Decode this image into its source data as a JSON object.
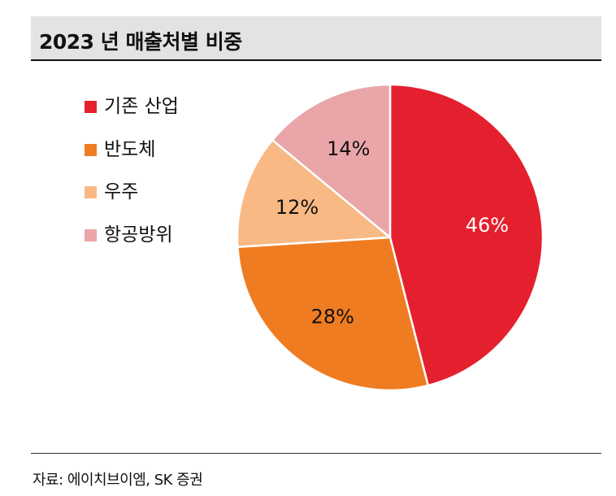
{
  "title": "2023 년 매출처별 비중",
  "source": "자료: 에이치브이엠, SK 증권",
  "colors": {
    "title_bg": "#e3e3e3",
    "slice_border": "#ffffff"
  },
  "chart_data": {
    "type": "pie",
    "title": "2023 년 매출처별 비중",
    "start": "12 o'clock",
    "direction": "clockwise",
    "legend_position": "left",
    "slices": [
      {
        "label": "기존 산업",
        "value": 46,
        "display": "46%",
        "color": "#e5202e",
        "label_color": "#ffffff"
      },
      {
        "label": "반도체",
        "value": 28,
        "display": "28%",
        "color": "#f07c22",
        "label_color": "#111111"
      },
      {
        "label": "우주",
        "value": 12,
        "display": "12%",
        "color": "#f9b984",
        "label_color": "#111111"
      },
      {
        "label": "항공방위",
        "value": 14,
        "display": "14%",
        "color": "#eaa5a8",
        "label_color": "#111111"
      }
    ]
  }
}
